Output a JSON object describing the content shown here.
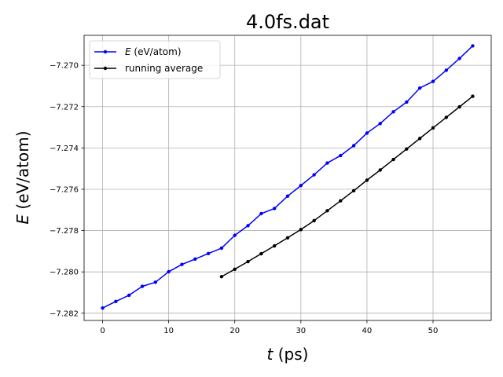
{
  "chart_data": {
    "type": "line",
    "title": "4.0fs.dat",
    "xlabel_var": "t",
    "xlabel_unit": " (ps)",
    "ylabel_var": "E",
    "ylabel_unit": " (eV/atom)",
    "xlim": [
      -2.8,
      58.8
    ],
    "ylim": [
      -7.28235,
      -7.26855
    ],
    "xticks": [
      0,
      10,
      20,
      30,
      40,
      50
    ],
    "xtick_labels": [
      "0",
      "10",
      "20",
      "30",
      "40",
      "50"
    ],
    "yticks": [
      -7.282,
      -7.28,
      -7.278,
      -7.276,
      -7.274,
      -7.272,
      -7.27
    ],
    "ytick_labels": [
      "−7.282",
      "−7.280",
      "−7.278",
      "−7.276",
      "−7.274",
      "−7.272",
      "−7.270"
    ],
    "grid": true,
    "legend_position": "top-left",
    "series": [
      {
        "name": "E",
        "legend_var": "E",
        "legend_unit": " (eV/atom)",
        "color": "#0000ff",
        "x": [
          0,
          2,
          4,
          6,
          8,
          10,
          12,
          14,
          16,
          18,
          20,
          22,
          24,
          26,
          28,
          30,
          32,
          34,
          36,
          38,
          40,
          42,
          44,
          46,
          48,
          50,
          52,
          54,
          56
        ],
        "y": [
          -7.28175,
          -7.28143,
          -7.28113,
          -7.2807,
          -7.2805,
          -7.27999,
          -7.27964,
          -7.27938,
          -7.27911,
          -7.27885,
          -7.27823,
          -7.27776,
          -7.27718,
          -7.27693,
          -7.27633,
          -7.27582,
          -7.2753,
          -7.27473,
          -7.27437,
          -7.27389,
          -7.27328,
          -7.27282,
          -7.27225,
          -7.27178,
          -7.2711,
          -7.27078,
          -7.27024,
          -7.26967,
          -7.26906
        ]
      },
      {
        "name": "running average",
        "legend_var": "",
        "legend_unit": "running average",
        "color": "#000000",
        "x": [
          18,
          20,
          22,
          24,
          26,
          28,
          30,
          32,
          34,
          36,
          38,
          40,
          42,
          44,
          46,
          48,
          50,
          52,
          54,
          56
        ],
        "y": [
          -7.28023,
          -7.27987,
          -7.2795,
          -7.27912,
          -7.27874,
          -7.27835,
          -7.27795,
          -7.27752,
          -7.27704,
          -7.27656,
          -7.27607,
          -7.27556,
          -7.27507,
          -7.27456,
          -7.27405,
          -7.27354,
          -7.27303,
          -7.27252,
          -7.27201,
          -7.2715
        ]
      }
    ]
  }
}
